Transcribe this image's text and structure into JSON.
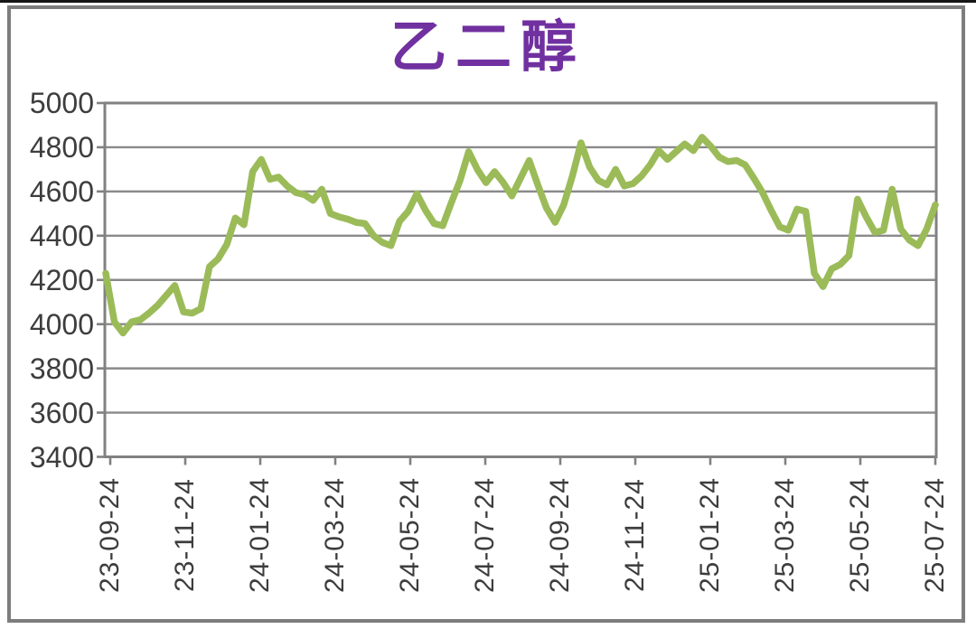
{
  "page": {
    "background": "#ffffff",
    "top_rule_color": "#161616",
    "frame_border_color": "#7d7d7d"
  },
  "chart_data": {
    "type": "line",
    "title": "乙二醇",
    "title_color": "#7030A0",
    "xlabel": "",
    "ylabel": "",
    "ylim": [
      3400,
      5000
    ],
    "y_tick_step": 200,
    "y_ticks": [
      5000,
      4800,
      4600,
      4400,
      4200,
      4000,
      3800,
      3600,
      3400
    ],
    "x_tick_labels": [
      "23-09-24",
      "23-11-24",
      "24-01-24",
      "24-03-24",
      "24-05-24",
      "24-07-24",
      "24-09-24",
      "24-11-24",
      "25-01-24",
      "25-03-24",
      "25-05-24",
      "25-07-24"
    ],
    "grid": "horizontal-only",
    "legend": "none",
    "axis_label_color": "#3d3d3d",
    "grid_color": "#8a8a8a",
    "series": [
      {
        "name": "乙二醇",
        "color": "#9bbb59",
        "cadence": "weekly",
        "values": [
          4230,
          4010,
          3960,
          4010,
          4020,
          4050,
          4085,
          4130,
          4175,
          4055,
          4050,
          4070,
          4260,
          4295,
          4360,
          4480,
          4450,
          4690,
          4745,
          4655,
          4665,
          4625,
          4595,
          4585,
          4560,
          4610,
          4500,
          4485,
          4475,
          4460,
          4455,
          4400,
          4370,
          4355,
          4465,
          4510,
          4590,
          4515,
          4455,
          4445,
          4550,
          4650,
          4780,
          4700,
          4640,
          4690,
          4640,
          4580,
          4660,
          4740,
          4630,
          4525,
          4460,
          4540,
          4670,
          4820,
          4710,
          4650,
          4630,
          4700,
          4625,
          4635,
          4670,
          4720,
          4785,
          4745,
          4780,
          4815,
          4785,
          4845,
          4805,
          4755,
          4735,
          4740,
          4720,
          4660,
          4595,
          4515,
          4440,
          4425,
          4520,
          4510,
          4230,
          4170,
          4250,
          4270,
          4310,
          4565,
          4485,
          4415,
          4425,
          4610,
          4430,
          4380,
          4355,
          4430,
          4540
        ]
      }
    ]
  }
}
